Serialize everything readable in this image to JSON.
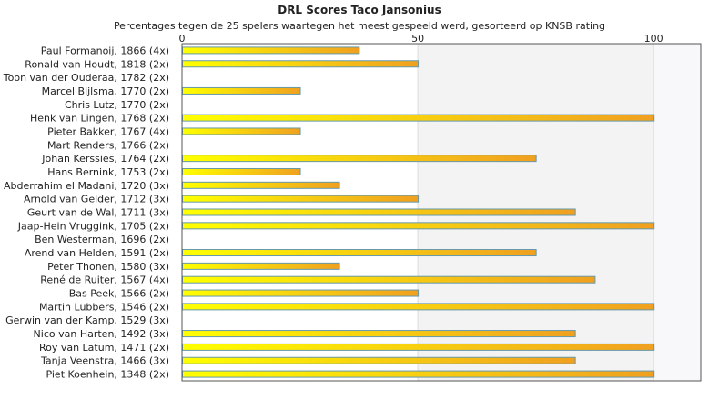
{
  "chart_data": {
    "type": "bar",
    "orientation": "horizontal",
    "title": "DRL Scores Taco Jansonius",
    "subtitle": "Percentages tegen de 25 spelers waartegen het meest gespeeld werd, gesorteerd op KNSB rating",
    "xlim": [
      0,
      110
    ],
    "xticks": [
      0,
      50,
      100
    ],
    "grid": true,
    "legend": "none",
    "colors": {
      "bar_start": "#ffff00",
      "bar_end": "#f0a020",
      "bar_border": "#6699aa",
      "band_light": "#f3f3f3",
      "band_lighter": "#f8f8fa"
    },
    "categories": [
      "Paul Formanoij, 1866 (4x)",
      "Ronald van Houdt, 1818 (2x)",
      "Toon van der Ouderaa, 1782 (2x)",
      "Marcel Bijlsma, 1770 (2x)",
      "Chris Lutz, 1770 (2x)",
      "Henk van Lingen, 1768 (2x)",
      "Pieter Bakker, 1767 (4x)",
      "Mart Renders, 1766 (2x)",
      "Johan Kerssies, 1764 (2x)",
      "Hans Bernink, 1753 (2x)",
      "Abderrahim el Madani, 1720 (3x)",
      "Arnold van Gelder, 1712 (3x)",
      "Geurt van de Wal, 1711 (3x)",
      "Jaap-Hein Vruggink, 1705 (2x)",
      "Ben Westerman, 1696 (2x)",
      "Arend van Helden, 1591 (2x)",
      "Peter Thonen, 1580 (3x)",
      "René de Ruiter, 1567 (4x)",
      "Bas Peek, 1566 (2x)",
      "Martin Lubbers, 1546 (2x)",
      "Gerwin van der Kamp, 1529 (3x)",
      "Nico van Harten, 1492 (3x)",
      "Roy van Latum, 1471 (2x)",
      "Tanja Veenstra, 1466 (3x)",
      "Piet Koenhein, 1348 (2x)"
    ],
    "values": [
      37.5,
      50,
      0,
      25,
      0,
      100,
      25,
      0,
      75,
      25,
      33.3,
      50,
      83.3,
      100,
      0,
      75,
      33.3,
      87.5,
      50,
      100,
      0,
      83.3,
      100,
      83.3,
      100
    ]
  }
}
